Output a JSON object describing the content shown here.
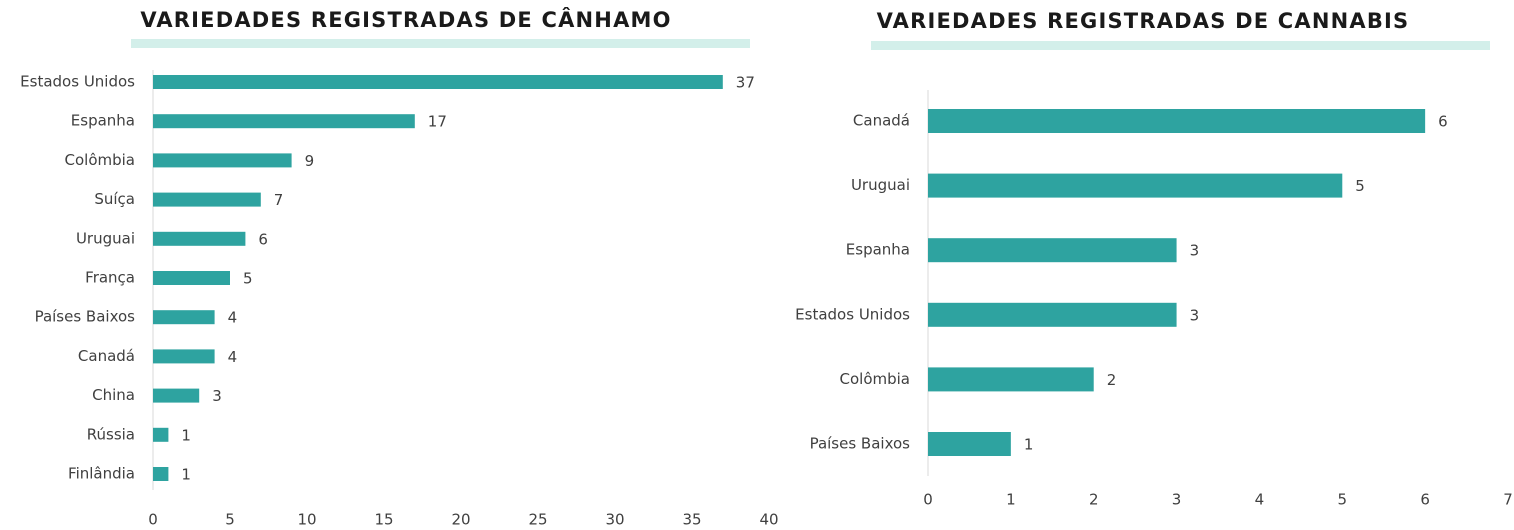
{
  "chart_data": [
    {
      "type": "bar",
      "orientation": "horizontal",
      "title": "VARIEDADES REGISTRADAS DE CÂNHAMO",
      "categories": [
        "Estados Unidos",
        "Espanha",
        "Colômbia",
        "Suíça",
        "Uruguai",
        "França",
        "Países Baixos",
        "Canadá",
        "China",
        "Rússia",
        "Finlândia"
      ],
      "values": [
        37,
        17,
        9,
        7,
        6,
        5,
        4,
        4,
        3,
        1,
        1
      ],
      "color": "#2ea3a0",
      "xlim": [
        0,
        40
      ],
      "xticks": [
        0,
        5,
        10,
        15,
        20,
        25,
        30,
        35,
        40
      ]
    },
    {
      "type": "bar",
      "orientation": "horizontal",
      "title": "VARIEDADES REGISTRADAS DE CANNABIS",
      "categories": [
        "Canadá",
        "Uruguai",
        "Espanha",
        "Estados Unidos",
        "Colômbia",
        "Países Baixos"
      ],
      "values": [
        6,
        5,
        3,
        3,
        2,
        1
      ],
      "color": "#2ea3a0",
      "xlim": [
        0,
        7
      ],
      "xticks": [
        0,
        1,
        2,
        3,
        4,
        5,
        6,
        7
      ]
    }
  ]
}
